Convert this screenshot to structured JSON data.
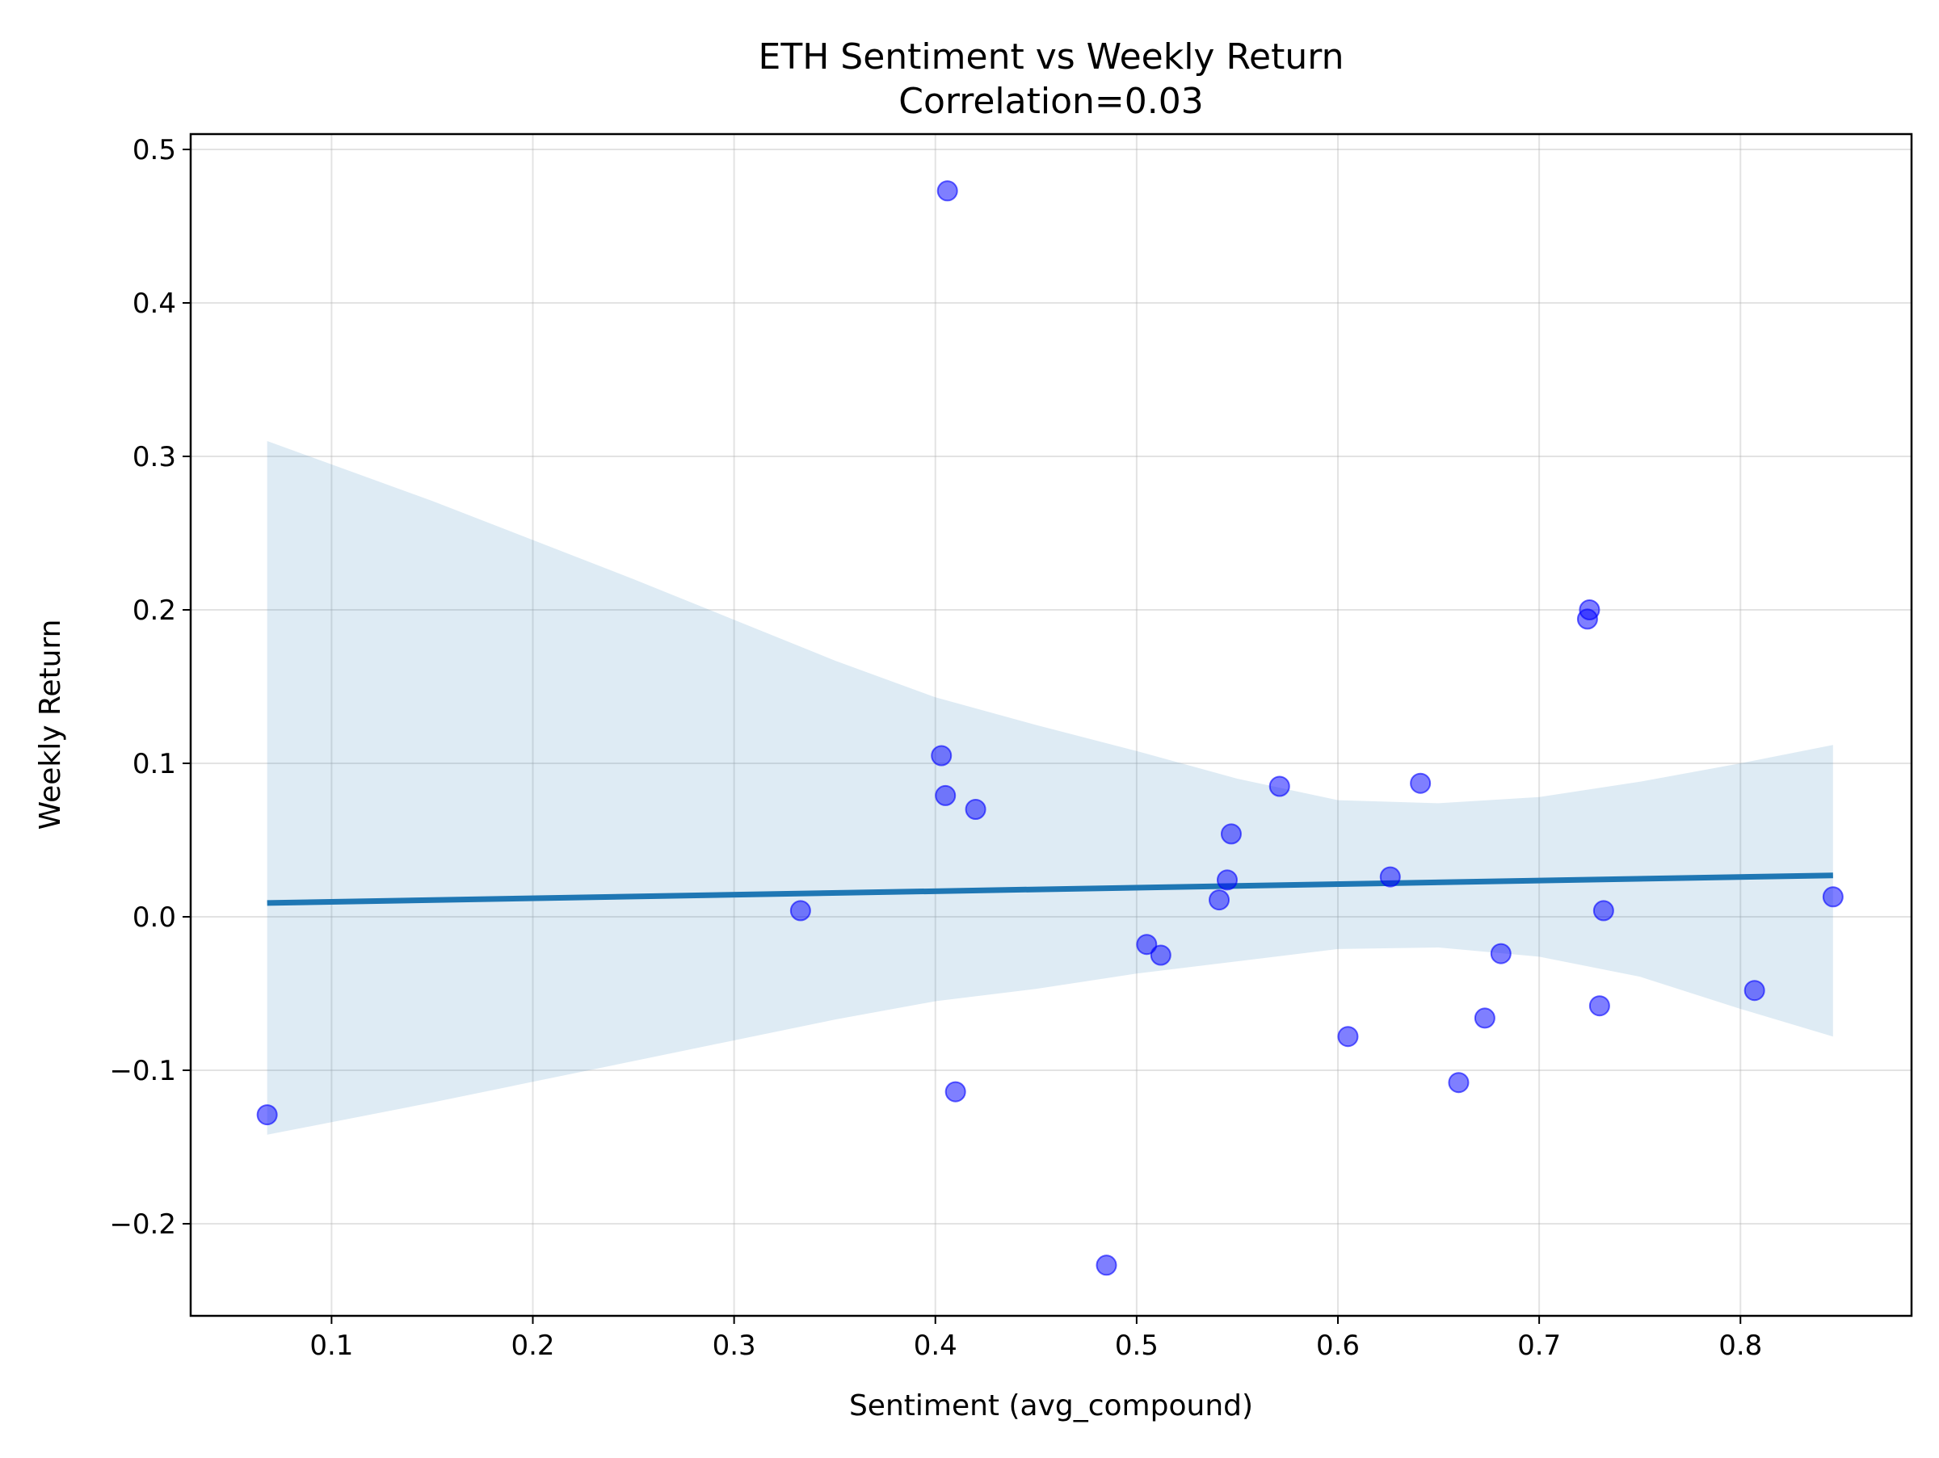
{
  "chart_data": {
    "type": "scatter",
    "title": "ETH Sentiment vs Weekly Return",
    "subtitle": "Correlation=0.03",
    "xlabel": "Sentiment (avg_compound)",
    "ylabel": "Weekly Return",
    "xlim": [
      0.03,
      0.885
    ],
    "ylim": [
      -0.26,
      0.51
    ],
    "xticks": [
      0.1,
      0.2,
      0.3,
      0.4,
      0.5,
      0.6,
      0.7,
      0.8
    ],
    "xtick_labels": [
      "0.1",
      "0.2",
      "0.3",
      "0.4",
      "0.5",
      "0.6",
      "0.7",
      "0.8"
    ],
    "yticks": [
      -0.2,
      -0.1,
      0.0,
      0.1,
      0.2,
      0.3,
      0.4,
      0.5
    ],
    "ytick_labels": [
      "−0.2",
      "−0.1",
      "0.0",
      "0.1",
      "0.2",
      "0.3",
      "0.4",
      "0.5"
    ],
    "grid": true,
    "colors": {
      "points": "#0000ff",
      "regression_line": "#1f77b4",
      "confidence_band": "#1f77b4"
    },
    "series": [
      {
        "kind": "points",
        "x": [
          0.068,
          0.333,
          0.403,
          0.405,
          0.406,
          0.41,
          0.42,
          0.485,
          0.505,
          0.512,
          0.541,
          0.545,
          0.547,
          0.571,
          0.605,
          0.626,
          0.641,
          0.66,
          0.673,
          0.681,
          0.724,
          0.725,
          0.73,
          0.732,
          0.807,
          0.846
        ],
        "y": [
          -0.129,
          0.004,
          0.105,
          0.079,
          0.473,
          -0.114,
          0.07,
          -0.227,
          -0.018,
          -0.025,
          0.011,
          0.024,
          0.054,
          0.085,
          -0.078,
          0.026,
          0.087,
          -0.108,
          -0.066,
          -0.024,
          0.194,
          0.2,
          -0.058,
          0.004,
          -0.048,
          0.013
        ]
      },
      {
        "kind": "regression",
        "x": [
          0.068,
          0.846
        ],
        "y": [
          0.009,
          0.027
        ]
      },
      {
        "kind": "confidence_band",
        "x": [
          0.068,
          0.15,
          0.25,
          0.35,
          0.4,
          0.45,
          0.5,
          0.55,
          0.6,
          0.65,
          0.7,
          0.75,
          0.8,
          0.846
        ],
        "upper": [
          0.31,
          0.271,
          0.22,
          0.167,
          0.143,
          0.125,
          0.108,
          0.09,
          0.076,
          0.074,
          0.078,
          0.088,
          0.1,
          0.112
        ],
        "lower": [
          -0.142,
          -0.121,
          -0.094,
          -0.067,
          -0.055,
          -0.047,
          -0.037,
          -0.029,
          -0.021,
          -0.02,
          -0.026,
          -0.039,
          -0.06,
          -0.078
        ]
      }
    ]
  }
}
